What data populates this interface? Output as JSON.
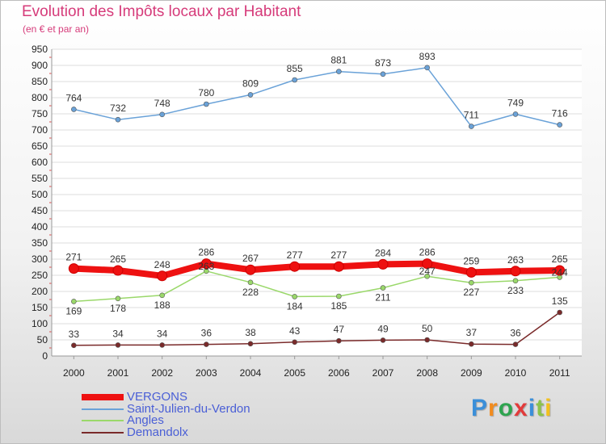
{
  "chart": {
    "title": "Evolution des Impôts locaux par Habitant",
    "subtitle": "(en € et par an)"
  },
  "logo": {
    "text": "Proxiti",
    "letter_colors": [
      "#3b8fd9",
      "#f28c1e",
      "#2ea44f",
      "#e23b3b",
      "#3b8fd9",
      "#8bc34a",
      "#f2c01e"
    ]
  },
  "chart_data": {
    "type": "line",
    "title": "Evolution des Impôts locaux par Habitant",
    "subtitle": "(en € et par an)",
    "xlabel": "",
    "ylabel": "",
    "x": [
      "2000",
      "2001",
      "2002",
      "2003",
      "2004",
      "2005",
      "2006",
      "2007",
      "2008",
      "2009",
      "2010",
      "2011"
    ],
    "ylim": [
      0,
      950
    ],
    "yticks": [
      0,
      50,
      100,
      150,
      200,
      250,
      300,
      350,
      400,
      450,
      500,
      550,
      600,
      650,
      700,
      750,
      800,
      850,
      900,
      950
    ],
    "grid": "horizontal",
    "legend_position": "bottom-left",
    "series": [
      {
        "name": "VERGONS",
        "color": "#ee1111",
        "values": [
          271,
          265,
          248,
          286,
          267,
          277,
          277,
          284,
          286,
          259,
          263,
          265
        ]
      },
      {
        "name": "Saint-Julien-du-Verdon",
        "color": "#6aa2d8",
        "values": [
          764,
          732,
          748,
          780,
          809,
          855,
          881,
          873,
          893,
          711,
          749,
          716
        ]
      },
      {
        "name": "Angles",
        "color": "#9ad86a",
        "values": [
          169,
          178,
          188,
          263,
          228,
          184,
          185,
          211,
          247,
          227,
          233,
          244
        ]
      },
      {
        "name": "Demandolx",
        "color": "#7a2a2a",
        "values": [
          33,
          34,
          34,
          36,
          38,
          43,
          47,
          49,
          50,
          37,
          36,
          135
        ]
      }
    ]
  }
}
